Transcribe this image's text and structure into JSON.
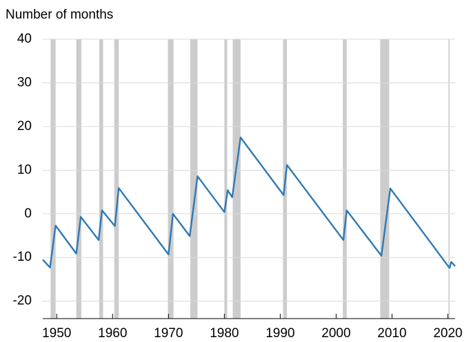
{
  "chart_data": {
    "type": "line",
    "y_axis_label": "Number of months",
    "xlim": [
      1947.5,
      2021.3
    ],
    "ylim": [
      -24,
      40
    ],
    "xticks": [
      1950,
      1960,
      1970,
      1980,
      1990,
      2000,
      2010,
      2020
    ],
    "yticks": [
      -20,
      -10,
      0,
      10,
      20,
      30,
      40
    ],
    "grid": true,
    "recession_color": "#cccccc",
    "recessions": [
      [
        1948.9,
        1949.8
      ],
      [
        1953.5,
        1954.4
      ],
      [
        1957.6,
        1958.3
      ],
      [
        1960.3,
        1961.1
      ],
      [
        1969.9,
        1970.9
      ],
      [
        1973.9,
        1975.2
      ],
      [
        1980.0,
        1980.5
      ],
      [
        1981.5,
        1982.9
      ],
      [
        1990.5,
        1991.2
      ],
      [
        2001.2,
        2001.9
      ],
      [
        2007.9,
        2009.5
      ],
      [
        2020.1,
        2020.3
      ]
    ],
    "series": [
      {
        "color": "#2e78b4",
        "x": [
          1947.5,
          1948.8,
          1949.8,
          1953.5,
          1954.3,
          1957.5,
          1958.1,
          1960.4,
          1961.1,
          1970.0,
          1970.8,
          1973.8,
          1975.2,
          1980.0,
          1980.6,
          1981.4,
          1982.9,
          1990.6,
          1991.2,
          2001.3,
          2001.9,
          2008.1,
          2009.7,
          2020.3,
          2020.6,
          2021.3
        ],
        "values": [
          -10.5,
          -12.3,
          -2.7,
          -9.1,
          -0.7,
          -6.0,
          0.8,
          -2.8,
          5.9,
          -9.3,
          0.0,
          -5.1,
          8.6,
          0.4,
          5.4,
          3.8,
          17.5,
          4.3,
          11.2,
          -6.0,
          0.8,
          -9.6,
          5.8,
          -12.4,
          -11.0,
          -12.0
        ]
      }
    ]
  }
}
